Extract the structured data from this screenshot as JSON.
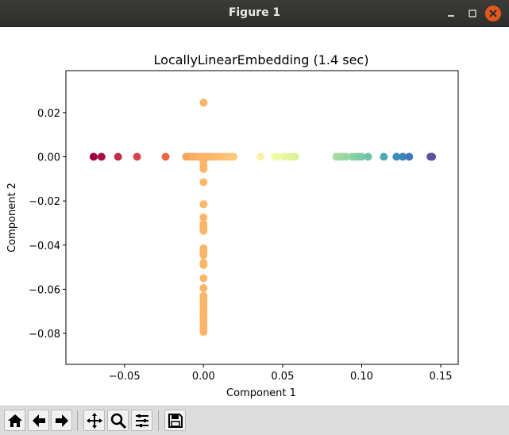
{
  "window": {
    "title": "Figure 1",
    "controls": [
      "minimize",
      "maximize",
      "close"
    ]
  },
  "toolbar": {
    "buttons": [
      "home-icon",
      "back-arrow-icon",
      "forward-arrow-icon",
      "pan-icon",
      "zoom-icon",
      "configure-subplots-icon",
      "save-icon"
    ]
  },
  "chart_data": {
    "type": "scatter",
    "title": "LocallyLinearEmbedding (1.4 sec)",
    "xlabel": "Component 1",
    "ylabel": "Component 2",
    "xlim": [
      -0.087,
      0.161
    ],
    "ylim": [
      -0.094,
      0.039
    ],
    "xticks": [
      -0.05,
      0.0,
      0.05,
      0.1,
      0.15
    ],
    "xtick_labels": [
      "−0.05",
      "0.00",
      "0.05",
      "0.10",
      "0.15"
    ],
    "yticks": [
      0.02,
      0.0,
      -0.02,
      -0.04,
      -0.06,
      -0.08
    ],
    "ytick_labels": [
      "0.02",
      "0.00",
      "−0.02",
      "−0.04",
      "−0.06",
      "−0.08"
    ],
    "grid": false,
    "colormap": "Spectral",
    "points": [
      {
        "x": -0.0695,
        "y": 0.0,
        "color": "#9e0142"
      },
      {
        "x": -0.0645,
        "y": 0.0,
        "color": "#a50f43"
      },
      {
        "x": -0.054,
        "y": 0.0,
        "color": "#c2294a"
      },
      {
        "x": -0.042,
        "y": 0.0,
        "color": "#d7424d"
      },
      {
        "x": -0.024,
        "y": 0.0,
        "color": "#ef6645"
      },
      {
        "x": -0.011,
        "y": 0.0,
        "color": "#f8a55b"
      },
      {
        "x": -0.009,
        "y": 0.0,
        "color": "#f8a55b"
      },
      {
        "x": -0.007,
        "y": 0.0,
        "color": "#f9ac5f"
      },
      {
        "x": -0.005,
        "y": 0.0,
        "color": "#f9ac5f"
      },
      {
        "x": -0.003,
        "y": 0.0,
        "color": "#fbb264"
      },
      {
        "x": -0.001,
        "y": 0.0,
        "color": "#fbb264"
      },
      {
        "x": 0.001,
        "y": 0.0,
        "color": "#fbb468"
      },
      {
        "x": 0.003,
        "y": 0.0,
        "color": "#fbb468"
      },
      {
        "x": 0.005,
        "y": 0.0,
        "color": "#fcb86a"
      },
      {
        "x": 0.007,
        "y": 0.0,
        "color": "#fcb86a"
      },
      {
        "x": 0.009,
        "y": 0.0,
        "color": "#fcbc6e"
      },
      {
        "x": 0.011,
        "y": 0.0,
        "color": "#fcbc6e"
      },
      {
        "x": 0.013,
        "y": 0.0,
        "color": "#fdbf71"
      },
      {
        "x": 0.015,
        "y": 0.0,
        "color": "#fdc274"
      },
      {
        "x": 0.017,
        "y": 0.0,
        "color": "#fdc576"
      },
      {
        "x": 0.019,
        "y": 0.0,
        "color": "#fdc879"
      },
      {
        "x": 0.036,
        "y": 0.0,
        "color": "#fef0a7"
      },
      {
        "x": 0.045,
        "y": 0.0,
        "color": "#f5fbb1"
      },
      {
        "x": 0.047,
        "y": 0.0,
        "color": "#f1f9a9"
      },
      {
        "x": 0.051,
        "y": 0.0,
        "color": "#e9f69d"
      },
      {
        "x": 0.054,
        "y": 0.0,
        "color": "#e4f498"
      },
      {
        "x": 0.056,
        "y": 0.0,
        "color": "#e0f398"
      },
      {
        "x": 0.058,
        "y": 0.0,
        "color": "#dcf19a"
      },
      {
        "x": 0.084,
        "y": 0.0,
        "color": "#a6dba4"
      },
      {
        "x": 0.086,
        "y": 0.0,
        "color": "#a2d9a4"
      },
      {
        "x": 0.088,
        "y": 0.0,
        "color": "#9ed7a4"
      },
      {
        "x": 0.09,
        "y": 0.0,
        "color": "#98d5a4"
      },
      {
        "x": 0.094,
        "y": 0.0,
        "color": "#8ed1a4"
      },
      {
        "x": 0.096,
        "y": 0.0,
        "color": "#88cfa4"
      },
      {
        "x": 0.098,
        "y": 0.0,
        "color": "#82cca5"
      },
      {
        "x": 0.1,
        "y": 0.0,
        "color": "#7ccaa5"
      },
      {
        "x": 0.104,
        "y": 0.0,
        "color": "#6dc4a5"
      },
      {
        "x": 0.114,
        "y": 0.0,
        "color": "#4fa9b1"
      },
      {
        "x": 0.122,
        "y": 0.0,
        "color": "#3d8fbb"
      },
      {
        "x": 0.126,
        "y": 0.0,
        "color": "#3a86b9"
      },
      {
        "x": 0.13,
        "y": 0.0,
        "color": "#3e79b5"
      },
      {
        "x": 0.1435,
        "y": 0.0,
        "color": "#5e4fa2"
      },
      {
        "x": 0.1445,
        "y": 0.0,
        "color": "#5e4fa2"
      },
      {
        "x": 0.0,
        "y": 0.0245,
        "color": "#fdb56a"
      },
      {
        "x": 0.0,
        "y": -0.002,
        "color": "#fdb56a"
      },
      {
        "x": 0.0,
        "y": -0.004,
        "color": "#fdb56a"
      },
      {
        "x": 0.0,
        "y": -0.0055,
        "color": "#fdb56a"
      },
      {
        "x": 0.0,
        "y": -0.0115,
        "color": "#fdb56a"
      },
      {
        "x": 0.0,
        "y": -0.0215,
        "color": "#fdb56a"
      },
      {
        "x": 0.0,
        "y": -0.0275,
        "color": "#fdb56a"
      },
      {
        "x": 0.0,
        "y": -0.0305,
        "color": "#fdb56a"
      },
      {
        "x": 0.0,
        "y": -0.032,
        "color": "#fdb56a"
      },
      {
        "x": 0.0,
        "y": -0.0335,
        "color": "#fdb56a"
      },
      {
        "x": 0.0,
        "y": -0.0415,
        "color": "#fdb56a"
      },
      {
        "x": 0.0,
        "y": -0.043,
        "color": "#fdb56a"
      },
      {
        "x": 0.0,
        "y": -0.0445,
        "color": "#fdb56a"
      },
      {
        "x": 0.0,
        "y": -0.048,
        "color": "#fdb56a"
      },
      {
        "x": 0.0,
        "y": -0.049,
        "color": "#fdb56a"
      },
      {
        "x": 0.0,
        "y": -0.055,
        "color": "#fdb56a"
      },
      {
        "x": 0.0,
        "y": -0.0595,
        "color": "#fdb56a"
      },
      {
        "x": 0.0,
        "y": -0.063,
        "color": "#fdb56a"
      },
      {
        "x": 0.0,
        "y": -0.0645,
        "color": "#fdb56a"
      },
      {
        "x": 0.0,
        "y": -0.066,
        "color": "#fdb56a"
      },
      {
        "x": 0.0,
        "y": -0.0675,
        "color": "#fdb56a"
      },
      {
        "x": 0.0,
        "y": -0.069,
        "color": "#fdb56a"
      },
      {
        "x": 0.0,
        "y": -0.0705,
        "color": "#fdb56a"
      },
      {
        "x": 0.0,
        "y": -0.072,
        "color": "#fdb56a"
      },
      {
        "x": 0.0,
        "y": -0.0735,
        "color": "#fdb56a"
      },
      {
        "x": 0.0,
        "y": -0.075,
        "color": "#fdb56a"
      },
      {
        "x": 0.0,
        "y": -0.0765,
        "color": "#fdb56a"
      },
      {
        "x": 0.0,
        "y": -0.078,
        "color": "#fdb56a"
      },
      {
        "x": 0.0,
        "y": -0.0793,
        "color": "#fdb56a"
      }
    ]
  }
}
